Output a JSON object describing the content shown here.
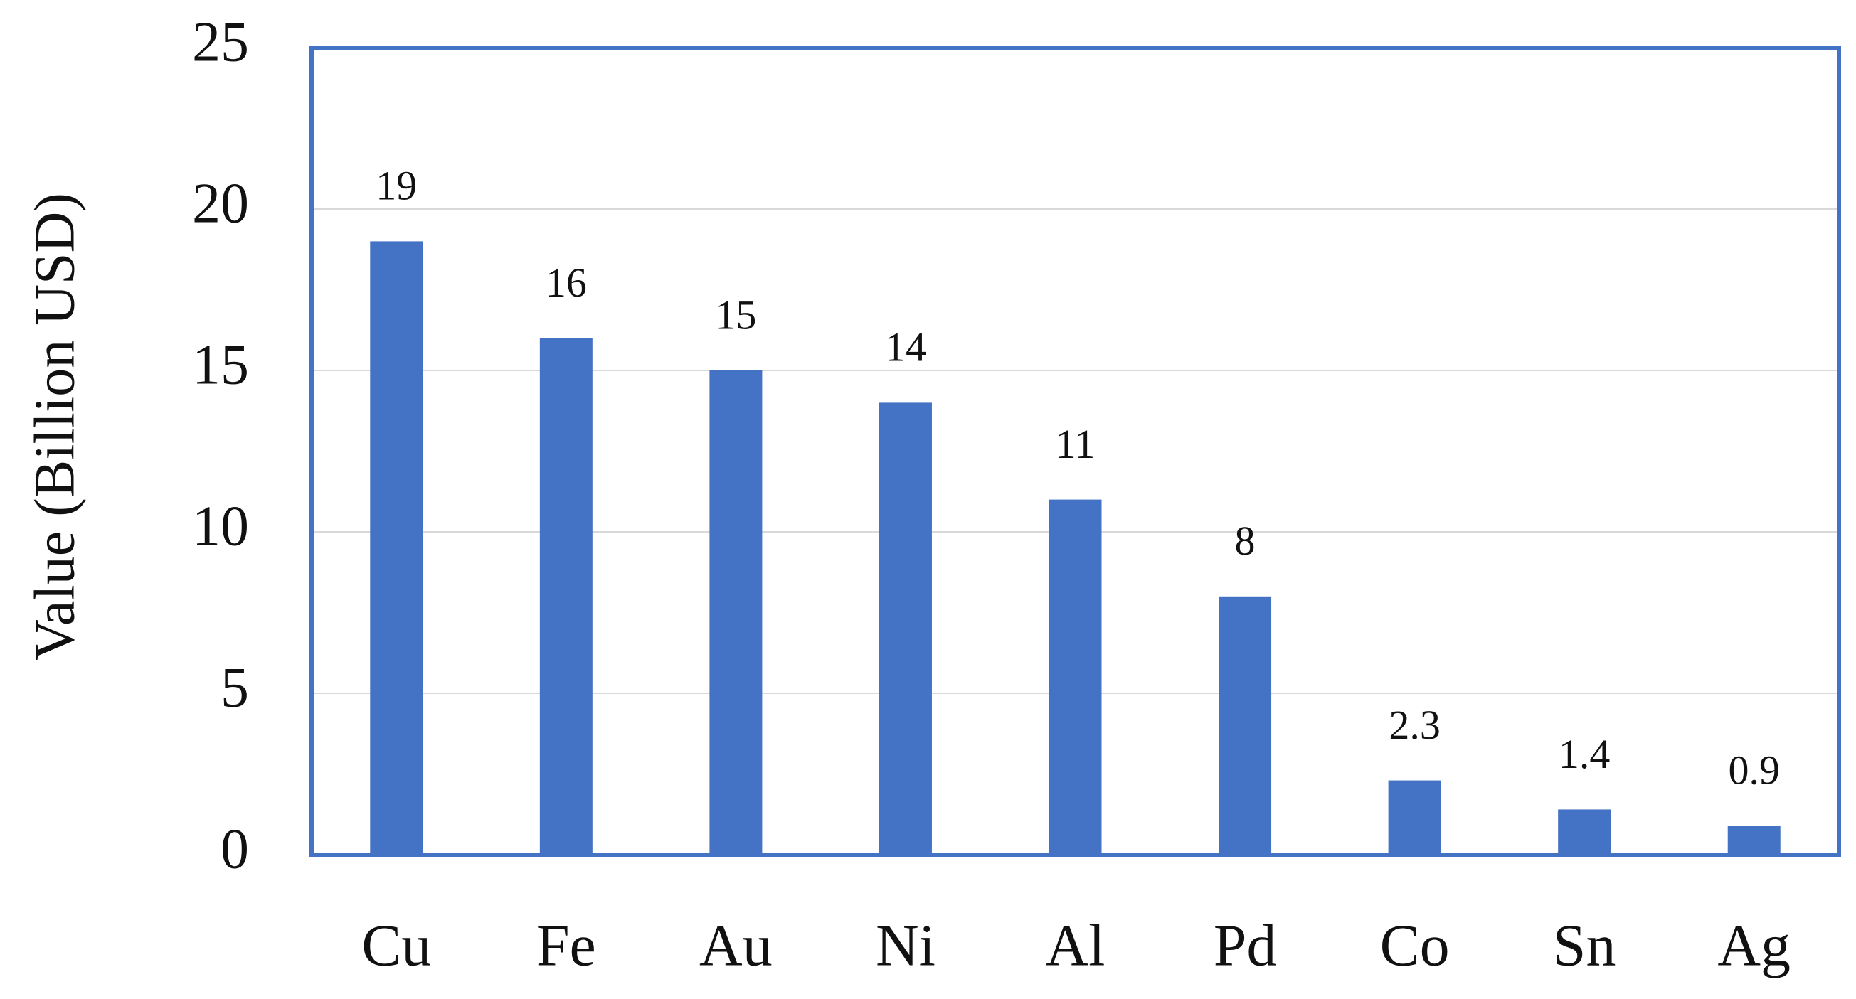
{
  "chart_data": {
    "type": "bar",
    "y_label": "Value (Billion USD)",
    "categories": [
      "Cu",
      "Fe",
      "Au",
      "Ni",
      "Al",
      "Pd",
      "Co",
      "Sn",
      "Ag"
    ],
    "values": [
      19,
      16,
      15,
      14,
      11,
      8,
      2.3,
      1.4,
      0.9
    ],
    "color": "#4472c4",
    "data_labels": true,
    "ylim": [
      0,
      25
    ],
    "yticks": [
      0,
      5,
      10,
      15,
      20,
      25
    ],
    "grid": true
  }
}
